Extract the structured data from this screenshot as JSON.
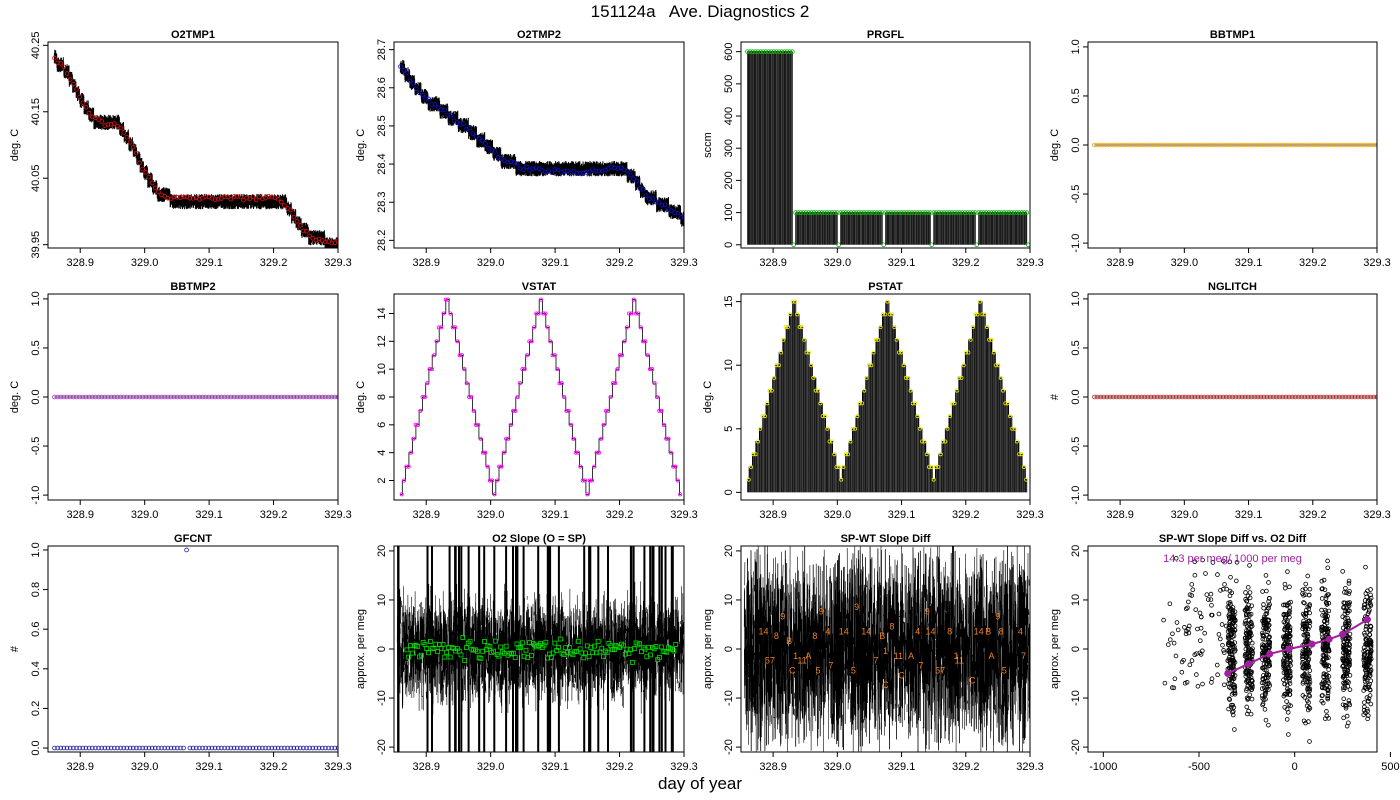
{
  "title": "151124a   Ave. Diagnostics 2",
  "common_xlabel": "day of year",
  "colors": {
    "red": "#e01010",
    "blue": "#1010d0",
    "green": "#10b010",
    "orange": "#f0a000",
    "purple": "#a030c0",
    "magenta": "#ff00ff",
    "yellow": "#e8e800",
    "brown": "#c02020",
    "navy": "#2020a0",
    "bright_green": "#00e000",
    "ann_orange": "#f08020",
    "ann_purple": "#a020a0"
  },
  "chart_data": [
    {
      "type": "line",
      "name": "O2TMP1",
      "title": "O2TMP1",
      "ylabel": "deg. C",
      "xlim": [
        328.85,
        329.3
      ],
      "ylim": [
        39.945,
        40.255
      ],
      "xticks": [
        328.9,
        329.0,
        329.1,
        329.2,
        329.3
      ],
      "xtick_labels": [
        "328.9",
        "329.0",
        "329.1",
        "329.2",
        "329.3"
      ],
      "yticks": [
        39.95,
        40.05,
        40.15,
        40.25
      ],
      "ytick_labels": [
        "39.95",
        "40.05",
        "40.15",
        "40.25"
      ],
      "marker_color": "red",
      "series": [
        {
          "name": "ave",
          "x": [
            328.86,
            328.88,
            328.9,
            328.92,
            328.94,
            328.96,
            328.98,
            329.0,
            329.02,
            329.04,
            329.06,
            329.1,
            329.15,
            329.2,
            329.22,
            329.24,
            329.26,
            329.28,
            329.3
          ],
          "values": [
            40.23,
            40.21,
            40.17,
            40.14,
            40.13,
            40.13,
            40.1,
            40.06,
            40.03,
            40.02,
            40.02,
            40.02,
            40.02,
            40.02,
            40.01,
            39.98,
            39.96,
            39.955,
            39.955
          ]
        }
      ]
    },
    {
      "type": "line",
      "name": "O2TMP2",
      "title": "O2TMP2",
      "ylabel": "deg. C",
      "xlim": [
        328.85,
        329.3
      ],
      "ylim": [
        28.18,
        28.72
      ],
      "xticks": [
        328.9,
        329.0,
        329.1,
        329.2,
        329.3
      ],
      "xtick_labels": [
        "328.9",
        "329.0",
        "329.1",
        "329.2",
        "329.3"
      ],
      "yticks": [
        28.2,
        28.3,
        28.4,
        28.5,
        28.6,
        28.7
      ],
      "ytick_labels": [
        "28.2",
        "28.3",
        "28.4",
        "28.5",
        "28.6",
        "28.7"
      ],
      "marker_color": "blue",
      "series": [
        {
          "name": "ave",
          "x": [
            328.86,
            328.88,
            328.9,
            328.92,
            328.94,
            328.96,
            328.98,
            329.0,
            329.02,
            329.05,
            329.1,
            329.15,
            329.2,
            329.22,
            329.24,
            329.26,
            329.28,
            329.3
          ],
          "values": [
            28.66,
            28.61,
            28.57,
            28.55,
            28.52,
            28.5,
            28.47,
            28.44,
            28.41,
            28.39,
            28.38,
            28.38,
            28.39,
            28.37,
            28.32,
            28.3,
            28.28,
            28.26
          ]
        }
      ]
    },
    {
      "type": "spike",
      "name": "PRGFL",
      "title": "PRGFL",
      "ylabel": "sccm",
      "xlim": [
        328.85,
        329.3
      ],
      "ylim": [
        -10,
        630
      ],
      "xticks": [
        328.9,
        329.0,
        329.1,
        329.2,
        329.3
      ],
      "xtick_labels": [
        "328.9",
        "329.0",
        "329.1",
        "329.2",
        "329.3"
      ],
      "yticks": [
        0,
        100,
        200,
        300,
        400,
        500,
        600
      ],
      "ytick_labels": [
        "0",
        "100",
        "200",
        "300",
        "400",
        "500",
        "600"
      ],
      "marker_color": "green",
      "segments": [
        {
          "start": 328.86,
          "end": 328.93,
          "level": 600
        },
        {
          "start": 328.935,
          "end": 329.0,
          "level": 100
        },
        {
          "start": 329.005,
          "end": 329.07,
          "level": 100
        },
        {
          "start": 329.075,
          "end": 329.145,
          "level": 100
        },
        {
          "start": 329.15,
          "end": 329.215,
          "level": 100
        },
        {
          "start": 329.22,
          "end": 329.295,
          "level": 100
        }
      ],
      "drop_level": 0
    },
    {
      "type": "line",
      "name": "BBTMP1",
      "title": "BBTMP1",
      "ylabel": "deg. C",
      "xlim": [
        328.85,
        329.3
      ],
      "ylim": [
        -1.05,
        1.05
      ],
      "xticks": [
        328.9,
        329.0,
        329.1,
        329.2,
        329.3
      ],
      "xtick_labels": [
        "328.9",
        "329.0",
        "329.1",
        "329.2",
        "329.3"
      ],
      "yticks": [
        -1.0,
        -0.5,
        0.0,
        0.5,
        1.0
      ],
      "ytick_labels": [
        "-1.0",
        "-0.5",
        "0.0",
        "0.5",
        "1.0"
      ],
      "marker_color": "orange",
      "series": [
        {
          "name": "ave",
          "x": [
            328.86,
            329.3
          ],
          "values": [
            0,
            0
          ]
        }
      ]
    },
    {
      "type": "line",
      "name": "BBTMP2",
      "title": "BBTMP2",
      "ylabel": "deg. C",
      "xlim": [
        328.85,
        329.3
      ],
      "ylim": [
        -1.05,
        1.05
      ],
      "xticks": [
        328.9,
        329.0,
        329.1,
        329.2,
        329.3
      ],
      "xtick_labels": [
        "328.9",
        "329.0",
        "329.1",
        "329.2",
        "329.3"
      ],
      "yticks": [
        -1.0,
        -0.5,
        0.0,
        0.5,
        1.0
      ],
      "ytick_labels": [
        "-1.0",
        "-0.5",
        "0.0",
        "0.5",
        "1.0"
      ],
      "marker_color": "purple",
      "series": [
        {
          "name": "ave",
          "x": [
            328.86,
            329.3
          ],
          "values": [
            0,
            0
          ]
        }
      ]
    },
    {
      "type": "step",
      "name": "VSTAT",
      "title": "VSTAT",
      "ylabel": "deg. C",
      "xlim": [
        328.85,
        329.3
      ],
      "ylim": [
        0.6,
        15.4
      ],
      "xticks": [
        328.9,
        329.0,
        329.1,
        329.2,
        329.3
      ],
      "xtick_labels": [
        "328.9",
        "329.0",
        "329.1",
        "329.2",
        "329.3"
      ],
      "yticks": [
        2,
        4,
        6,
        8,
        10,
        12,
        14
      ],
      "ytick_labels": [
        "2",
        "4",
        "6",
        "8",
        "10",
        "12",
        "14"
      ],
      "marker_color": "magenta",
      "cycle_starts": [
        328.86,
        329.005,
        329.15
      ],
      "cycle_period": 0.145,
      "min_level": 1,
      "max_level": 15
    },
    {
      "type": "spike",
      "name": "PSTAT",
      "title": "PSTAT",
      "ylabel": "deg. C",
      "xlim": [
        328.85,
        329.3
      ],
      "ylim": [
        -0.6,
        15.6
      ],
      "xticks": [
        328.9,
        329.0,
        329.1,
        329.2,
        329.3
      ],
      "xtick_labels": [
        "328.9",
        "329.0",
        "329.1",
        "329.2",
        "329.3"
      ],
      "yticks": [
        0,
        5,
        10,
        15
      ],
      "ytick_labels": [
        "0",
        "5",
        "10",
        "15"
      ],
      "marker_color": "yellow",
      "cycle_starts": [
        328.86,
        329.005,
        329.15
      ],
      "cycle_period": 0.145,
      "min_level": 1,
      "max_level": 15
    },
    {
      "type": "line",
      "name": "NGLITCH",
      "title": "NGLITCH",
      "ylabel": "#",
      "xlim": [
        328.85,
        329.3
      ],
      "ylim": [
        -1.05,
        1.05
      ],
      "xticks": [
        328.9,
        329.0,
        329.1,
        329.2,
        329.3
      ],
      "xtick_labels": [
        "328.9",
        "329.0",
        "329.1",
        "329.2",
        "329.3"
      ],
      "yticks": [
        -1.0,
        -0.5,
        0.0,
        0.5,
        1.0
      ],
      "ytick_labels": [
        "-1.0",
        "-0.5",
        "0.0",
        "0.5",
        "1.0"
      ],
      "marker_color": "brown",
      "series": [
        {
          "name": "ave",
          "x": [
            328.86,
            329.3
          ],
          "values": [
            0,
            0
          ]
        }
      ]
    },
    {
      "type": "scatter",
      "name": "GFCNT",
      "title": "GFCNT",
      "ylabel": "#",
      "xlim": [
        328.85,
        329.3
      ],
      "ylim": [
        -0.02,
        1.02
      ],
      "xticks": [
        328.9,
        329.0,
        329.1,
        329.2,
        329.3
      ],
      "xtick_labels": [
        "328.9",
        "329.0",
        "329.1",
        "329.2",
        "329.3"
      ],
      "yticks": [
        0.0,
        0.2,
        0.4,
        0.6,
        0.8,
        1.0
      ],
      "ytick_labels": [
        "0.0",
        "0.2",
        "0.4",
        "0.6",
        "0.8",
        "1.0"
      ],
      "marker_color": "navy",
      "baseline": 0,
      "outliers": [
        {
          "x": 329.065,
          "y": 1.0
        }
      ]
    },
    {
      "type": "noise",
      "name": "O2-Slope",
      "title": "O2 Slope (O = SP)",
      "ylabel": "approx. per meg",
      "xlim": [
        328.85,
        329.3
      ],
      "ylim": [
        -21,
        21
      ],
      "xticks": [
        328.9,
        329.0,
        329.1,
        329.2,
        329.3
      ],
      "xtick_labels": [
        "328.9",
        "329.0",
        "329.1",
        "329.2",
        "329.3"
      ],
      "yticks": [
        -20,
        -10,
        0,
        10,
        20
      ],
      "ytick_labels": [
        "-20",
        "-10",
        "0",
        "10",
        "20"
      ],
      "marker_color": "bright_green",
      "noise_amplitude": 7,
      "center": 0
    },
    {
      "type": "noise",
      "name": "SP-WT-Slope-Diff",
      "title": "SP-WT Slope Diff",
      "ylabel": "approx. per meg",
      "xlim": [
        328.85,
        329.3
      ],
      "ylim": [
        -21,
        21
      ],
      "xticks": [
        328.9,
        329.0,
        329.1,
        329.2,
        329.3
      ],
      "xtick_labels": [
        "328.9",
        "329.0",
        "329.1",
        "329.2",
        "329.3"
      ],
      "yticks": [
        -20,
        -10,
        0,
        10,
        20
      ],
      "ytick_labels": [
        "-20",
        "-10",
        "0",
        "10",
        "20"
      ],
      "noise_amplitude": 12,
      "center": 0,
      "annotations": [
        {
          "x": 328.885,
          "y": 3,
          "text": "14"
        },
        {
          "x": 328.905,
          "y": 2,
          "text": "8"
        },
        {
          "x": 328.915,
          "y": 6,
          "text": "9"
        },
        {
          "x": 328.895,
          "y": -3,
          "text": "57"
        },
        {
          "x": 328.925,
          "y": 1,
          "text": "B"
        },
        {
          "x": 328.935,
          "y": -2,
          "text": "1"
        },
        {
          "x": 328.945,
          "y": -3,
          "text": "11"
        },
        {
          "x": 328.93,
          "y": -5,
          "text": "C"
        },
        {
          "x": 328.955,
          "y": -2,
          "text": "A"
        },
        {
          "x": 328.965,
          "y": 2,
          "text": "8"
        },
        {
          "x": 328.975,
          "y": 7,
          "text": "9"
        },
        {
          "x": 328.985,
          "y": 3,
          "text": "4"
        },
        {
          "x": 328.97,
          "y": -5,
          "text": "5"
        },
        {
          "x": 328.99,
          "y": -4,
          "text": "7"
        },
        {
          "x": 329.01,
          "y": 3,
          "text": "14"
        },
        {
          "x": 329.03,
          "y": 8,
          "text": "9"
        },
        {
          "x": 329.025,
          "y": -5,
          "text": "5"
        },
        {
          "x": 329.045,
          "y": 3,
          "text": "14"
        },
        {
          "x": 329.06,
          "y": -3,
          "text": "7"
        },
        {
          "x": 329.07,
          "y": 2,
          "text": "B"
        },
        {
          "x": 329.075,
          "y": -1,
          "text": "1"
        },
        {
          "x": 329.075,
          "y": -8,
          "text": "C"
        },
        {
          "x": 329.085,
          "y": 4,
          "text": "8"
        },
        {
          "x": 329.095,
          "y": -2,
          "text": "11"
        },
        {
          "x": 329.1,
          "y": -6,
          "text": "C"
        },
        {
          "x": 329.115,
          "y": -2,
          "text": "A"
        },
        {
          "x": 329.125,
          "y": 3,
          "text": "4"
        },
        {
          "x": 329.13,
          "y": -4,
          "text": "7"
        },
        {
          "x": 329.14,
          "y": 7,
          "text": "9"
        },
        {
          "x": 329.145,
          "y": 3,
          "text": "14"
        },
        {
          "x": 329.16,
          "y": -5,
          "text": "57"
        },
        {
          "x": 329.175,
          "y": 3,
          "text": "8"
        },
        {
          "x": 329.185,
          "y": -2,
          "text": "1"
        },
        {
          "x": 329.19,
          "y": -3,
          "text": "11"
        },
        {
          "x": 329.21,
          "y": -7,
          "text": "C"
        },
        {
          "x": 329.22,
          "y": 3,
          "text": "14"
        },
        {
          "x": 329.235,
          "y": 3,
          "text": "B"
        },
        {
          "x": 329.24,
          "y": -2,
          "text": "A"
        },
        {
          "x": 329.25,
          "y": 6,
          "text": "9"
        },
        {
          "x": 329.255,
          "y": 3,
          "text": "8"
        },
        {
          "x": 329.26,
          "y": -5,
          "text": "5"
        },
        {
          "x": 329.285,
          "y": 3,
          "text": "4"
        },
        {
          "x": 329.29,
          "y": -2,
          "text": "7"
        }
      ]
    },
    {
      "type": "scatter",
      "name": "SP-WT-vs-O2",
      "title": "SP-WT Slope Diff vs. O2 Diff",
      "ylabel": "approx. per meg",
      "xlim": [
        -1080,
        430
      ],
      "ylim": [
        -21,
        21
      ],
      "xticks": [
        -1000,
        -500,
        0,
        500
      ],
      "xtick_labels": [
        "-1000",
        "-500",
        "0",
        "500"
      ],
      "yticks": [
        -20,
        -10,
        0,
        10,
        20
      ],
      "ytick_labels": [
        "-20",
        "-10",
        "0",
        "10",
        "20"
      ],
      "annotation": "14.3 per meg/ 1000 per meg",
      "fit": [
        {
          "x": -350,
          "y": -5
        },
        {
          "x": -240,
          "y": -3
        },
        {
          "x": -130,
          "y": -1
        },
        {
          "x": -30,
          "y": 0
        },
        {
          "x": 90,
          "y": 1
        },
        {
          "x": 180,
          "y": 2
        },
        {
          "x": 250,
          "y": 3
        },
        {
          "x": 380,
          "y": 6
        }
      ],
      "columns": [
        -330,
        -240,
        -150,
        -40,
        60,
        160,
        270,
        380
      ]
    }
  ]
}
